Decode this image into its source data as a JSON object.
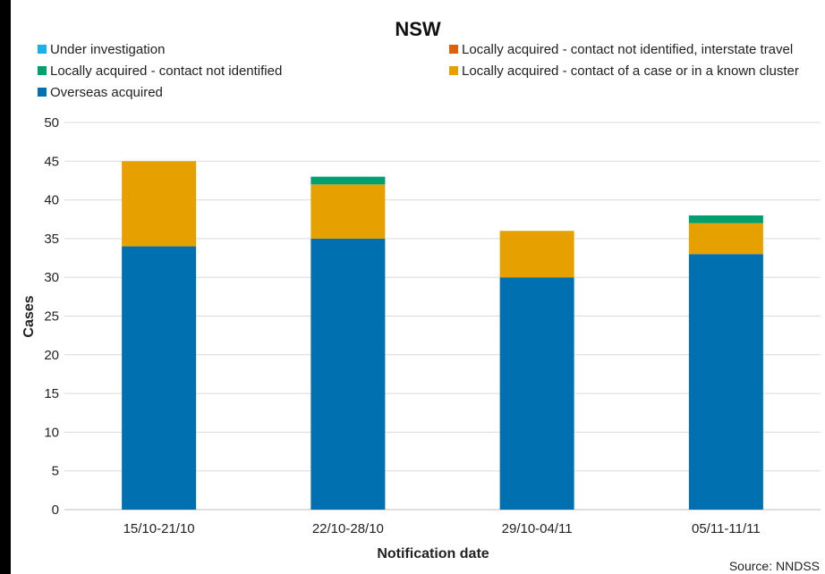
{
  "chart_data": {
    "type": "bar",
    "stacked": true,
    "title": "NSW",
    "xlabel": "Notification date",
    "ylabel": "Cases",
    "ylim": [
      0,
      50
    ],
    "yticks": [
      0,
      5,
      10,
      15,
      20,
      25,
      30,
      35,
      40,
      45,
      50
    ],
    "grid": true,
    "legend_position": "top",
    "categories": [
      "15/10-21/10",
      "22/10-28/10",
      "29/10-04/11",
      "05/11-11/11"
    ],
    "series": [
      {
        "name": "Overseas acquired",
        "color": "#0070b0",
        "values": [
          34,
          35,
          30,
          33
        ]
      },
      {
        "name": "Locally acquired - contact of a case or in a known cluster",
        "color": "#e6a000",
        "values": [
          11,
          7,
          6,
          4
        ]
      },
      {
        "name": "Locally acquired - contact not identified",
        "color": "#00a06e",
        "values": [
          0,
          1,
          0,
          1
        ]
      },
      {
        "name": "Locally acquired - contact not identified, interstate travel",
        "color": "#e06010",
        "values": [
          0,
          0,
          0,
          0
        ]
      },
      {
        "name": "Under investigation",
        "color": "#1ab0e8",
        "values": [
          0,
          0,
          0,
          0
        ]
      }
    ],
    "legend_order": [
      "Under investigation",
      "Locally acquired - contact not identified, interstate travel",
      "Locally acquired - contact not identified",
      "Locally acquired - contact of a case or in a known cluster",
      "Overseas acquired"
    ],
    "source": "Source: NNDSS"
  }
}
